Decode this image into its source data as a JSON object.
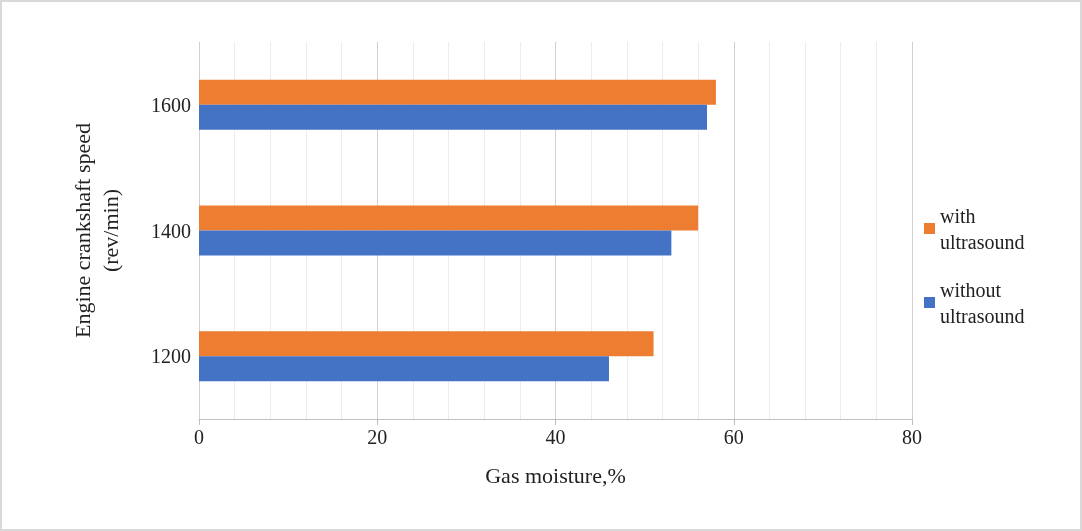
{
  "chart_data": {
    "type": "bar",
    "orientation": "horizontal",
    "xlabel": "Gas moisture,%",
    "ylabel": "Engine crankshaft speed\n(rev/min)",
    "categories": [
      "1600",
      "1400",
      "1200"
    ],
    "series": [
      {
        "name": "with ultrasound",
        "color": "#ed7d31",
        "values": [
          58,
          56,
          51
        ]
      },
      {
        "name": "without ultrasound",
        "color": "#4472c4",
        "values": [
          57,
          53,
          46
        ]
      }
    ],
    "xlim": [
      0,
      80
    ],
    "xticks": [
      0,
      20,
      40,
      60,
      80
    ],
    "grid": "x",
    "legend": "right"
  }
}
